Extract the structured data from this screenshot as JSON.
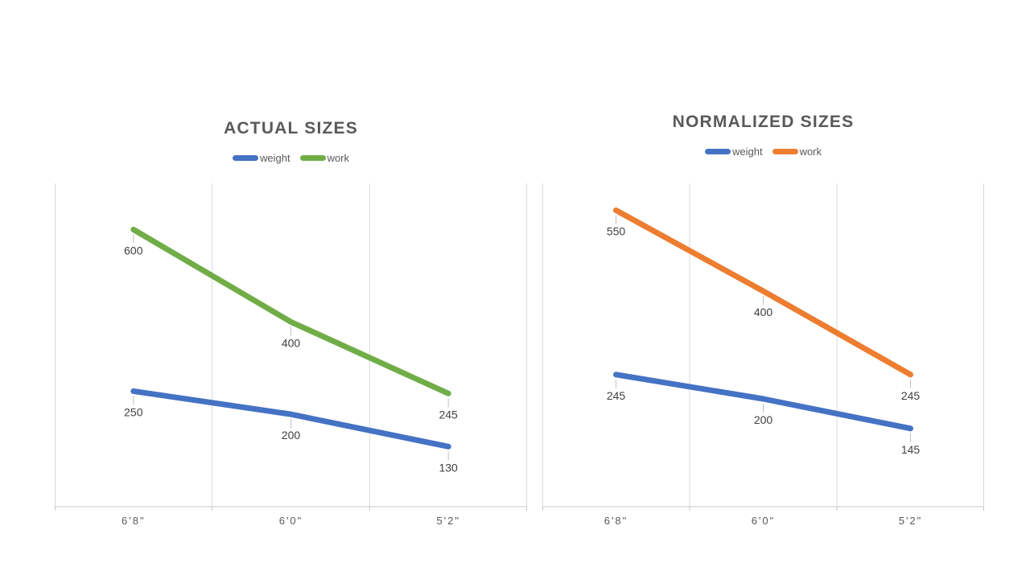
{
  "chart_data": [
    {
      "type": "line",
      "title": "ACTUAL SIZES",
      "categories": [
        "6'8\"",
        "6'0\"",
        "5'2\""
      ],
      "series": [
        {
          "name": "weight",
          "color": "#4472C4",
          "values": [
            250,
            200,
            130
          ]
        },
        {
          "name": "work",
          "color": "#70AD47",
          "values": [
            600,
            400,
            245
          ]
        }
      ],
      "ylim": [
        0,
        700
      ],
      "legend_position": "top",
      "grid": "vertical-only",
      "data_labels": true
    },
    {
      "type": "line",
      "title": "NORMALIZED SIZES",
      "categories": [
        "6'8\"",
        "6'0\"",
        "5'2\""
      ],
      "series": [
        {
          "name": "weight",
          "color": "#4472C4",
          "values": [
            245,
            200,
            145
          ]
        },
        {
          "name": "work",
          "color": "#ED7D31",
          "values": [
            550,
            400,
            245
          ]
        }
      ],
      "ylim": [
        0,
        600
      ],
      "legend_position": "top",
      "grid": "vertical-only",
      "data_labels": true
    }
  ],
  "styles": {
    "background": "#FFFFFF",
    "title_color": "#595959",
    "legend_text_color": "#595959",
    "axis_label_color": "#595959",
    "data_label_color": "#404040",
    "gridline_color": "#D9D9D9",
    "axis_line_color": "#C8C8C8",
    "leader_line_color": "#BFBFBF"
  }
}
